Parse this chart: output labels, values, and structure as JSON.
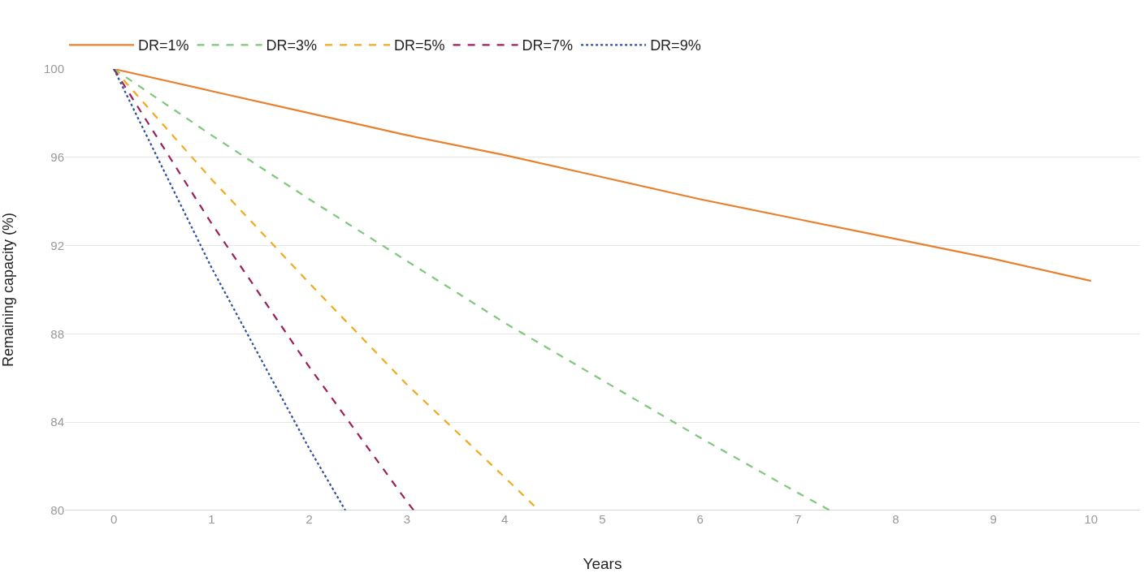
{
  "chart_data": {
    "type": "line",
    "xlabel": "Years",
    "ylabel": "Remaining capacity (%)",
    "xlim": [
      -0.5,
      10.5
    ],
    "xticks": [
      0,
      1,
      2,
      3,
      4,
      5,
      6,
      7,
      8,
      9,
      10
    ],
    "ylim": [
      80,
      100
    ],
    "yticks": [
      80,
      84,
      88,
      92,
      96,
      100
    ],
    "grid": "y",
    "legend": "top left",
    "marker": "none",
    "series": [
      {
        "name": "DR=1%",
        "color": "#e8812f",
        "line_style": "solid",
        "x": [
          0,
          1,
          2,
          3,
          4,
          5,
          6,
          7,
          8,
          9,
          10
        ],
        "values": [
          100,
          99,
          98.0,
          97.0,
          96.1,
          95.1,
          94.1,
          93.2,
          92.3,
          91.4,
          90.4
        ]
      },
      {
        "name": "DR=3%",
        "color": "#7dc87a",
        "line_style": "dashed",
        "x": [
          0,
          1,
          2,
          3,
          4,
          5,
          6,
          7,
          7.33
        ],
        "values": [
          100,
          97,
          94.1,
          91.3,
          88.5,
          85.9,
          83.3,
          80.8,
          80
        ]
      },
      {
        "name": "DR=5%",
        "color": "#f2a91e",
        "line_style": "dashed",
        "x": [
          0,
          1,
          2,
          3,
          4,
          4.35
        ],
        "values": [
          100,
          95,
          90.3,
          85.7,
          81.5,
          80
        ]
      },
      {
        "name": "DR=7%",
        "color": "#9c1f5a",
        "line_style": "dashed",
        "x": [
          0,
          1,
          2,
          3,
          3.07
        ],
        "values": [
          100,
          93,
          86.5,
          80.4,
          80
        ]
      },
      {
        "name": "DR=9%",
        "color": "#2e4fa5",
        "line_style": "dotted",
        "x": [
          0,
          1,
          2,
          2.37
        ],
        "values": [
          100,
          91,
          82.8,
          80
        ]
      }
    ]
  }
}
